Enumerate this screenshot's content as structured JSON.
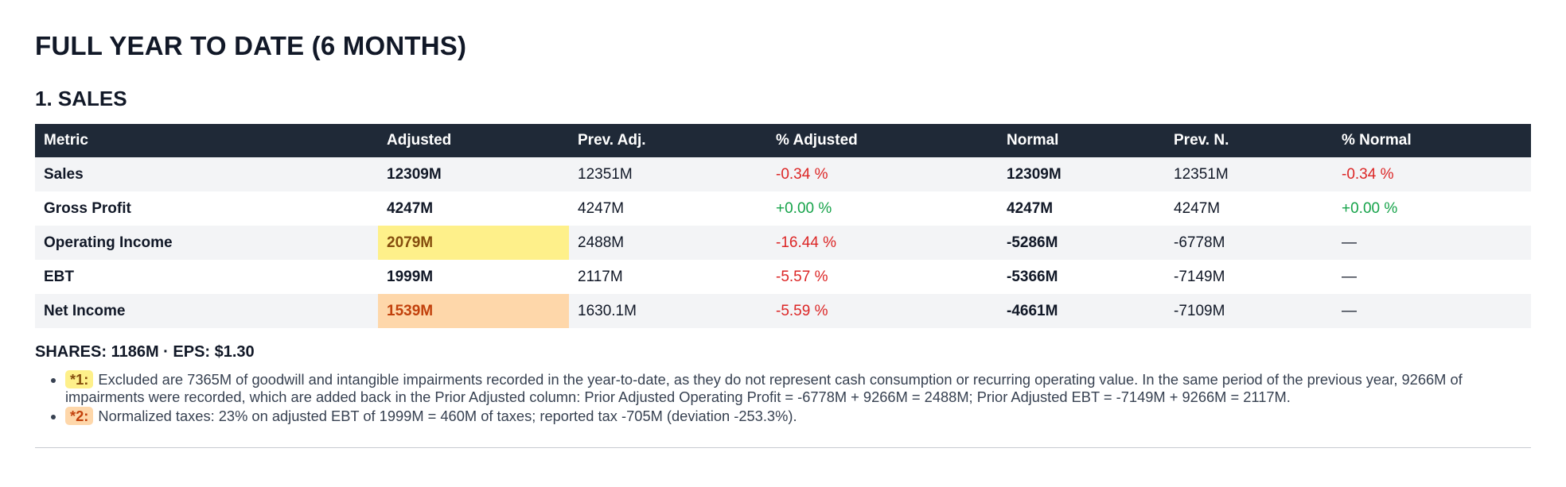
{
  "page": {
    "title": "FULL YEAR TO DATE (6 MONTHS)"
  },
  "section": {
    "title": "1. SALES"
  },
  "table": {
    "headers": {
      "metric": "Metric",
      "adjusted": "Adjusted",
      "prev_adj": "Prev. Adj.",
      "pct_adjusted": "% Adjusted",
      "normal": "Normal",
      "prev_normal": "Prev. N.",
      "pct_normal": "% Normal"
    },
    "rows": [
      {
        "metric": "Sales",
        "adjusted": "12309M",
        "prev_adj": "12351M",
        "pct_adjusted": "-0.34 %",
        "normal": "12309M",
        "prev_normal": "12351M",
        "pct_normal": "-0.34 %"
      },
      {
        "metric": "Gross Profit",
        "adjusted": "4247M",
        "prev_adj": "4247M",
        "pct_adjusted": "+0.00 %",
        "normal": "4247M",
        "prev_normal": "4247M",
        "pct_normal": "+0.00 %"
      },
      {
        "metric": "Operating Income",
        "adjusted": "2079M",
        "prev_adj": "2488M",
        "pct_adjusted": "-16.44 %",
        "normal": "-5286M",
        "prev_normal": "-6778M",
        "pct_normal": "—"
      },
      {
        "metric": "EBT",
        "adjusted": "1999M",
        "prev_adj": "2117M",
        "pct_adjusted": "-5.57 %",
        "normal": "-5366M",
        "prev_normal": "-7149M",
        "pct_normal": "—"
      },
      {
        "metric": "Net Income",
        "adjusted": "1539M",
        "prev_adj": "1630.1M",
        "pct_adjusted": "-5.59 %",
        "normal": "-4661M",
        "prev_normal": "-7109M",
        "pct_normal": "—"
      }
    ]
  },
  "summary": {
    "shares_eps": "SHARES: 1186M · EPS: $1.30"
  },
  "notes": [
    {
      "tag": "*1:",
      "text": "Excluded are 7365M of goodwill and intangible impairments recorded in the year-to-date, as they do not represent cash consumption or recurring operating value. In the same period of the previous year, 9266M of impairments were recorded, which are added back in the Prior Adjusted column: Prior Adjusted Operating Profit = -6778M + 9266M = 2488M; Prior Adjusted EBT = -7149M + 9266M = 2117M."
    },
    {
      "tag": "*2:",
      "text": "Normalized taxes: 23% on adjusted EBT of 1999M = 460M of taxes; reported tax -705M (deviation -253.3%)."
    }
  ],
  "colors": {
    "header_bg": "#1f2937",
    "negative": "#dc2626",
    "positive": "#16a34a",
    "highlight_yellow": "#fef08a",
    "highlight_orange": "#fed7aa"
  }
}
